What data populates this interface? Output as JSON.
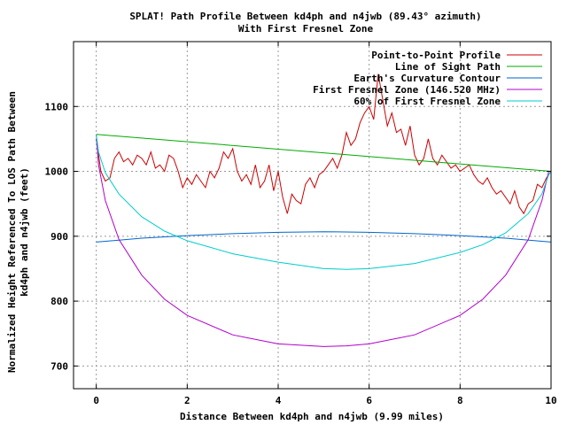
{
  "chart_data": {
    "type": "line",
    "title": "SPLAT! Path Profile Between kd4ph and n4jwb (89.43° azimuth)",
    "subtitle": "With First Fresnel Zone",
    "xlabel": "Distance Between kd4ph and n4jwb (9.99 miles)",
    "ylabel_line1": "Normalized Height Referenced To LOS Path Between",
    "ylabel_line2": "kd4ph and n4jwb (feet)",
    "xlim": [
      -0.5,
      10
    ],
    "ylim": [
      665,
      1200
    ],
    "x_ticks": [
      0,
      2,
      4,
      6,
      8,
      10
    ],
    "y_ticks": [
      700,
      800,
      900,
      1000,
      1100
    ],
    "grid": true,
    "legend_position": "top-right",
    "series": [
      {
        "name": "Point-to-Point Profile",
        "color": "#cc0000",
        "x": [
          0,
          0.1,
          0.2,
          0.3,
          0.4,
          0.5,
          0.6,
          0.7,
          0.8,
          0.9,
          1.0,
          1.1,
          1.2,
          1.3,
          1.4,
          1.5,
          1.6,
          1.7,
          1.8,
          1.9,
          2.0,
          2.1,
          2.2,
          2.3,
          2.4,
          2.5,
          2.6,
          2.7,
          2.8,
          2.9,
          3.0,
          3.1,
          3.2,
          3.3,
          3.4,
          3.5,
          3.6,
          3.7,
          3.8,
          3.9,
          4.0,
          4.1,
          4.2,
          4.3,
          4.4,
          4.5,
          4.6,
          4.7,
          4.8,
          4.9,
          5.0,
          5.1,
          5.2,
          5.3,
          5.4,
          5.5,
          5.6,
          5.7,
          5.8,
          5.9,
          6.0,
          6.1,
          6.2,
          6.3,
          6.4,
          6.5,
          6.6,
          6.7,
          6.8,
          6.9,
          7.0,
          7.1,
          7.2,
          7.3,
          7.4,
          7.5,
          7.6,
          7.7,
          7.8,
          7.9,
          8.0,
          8.1,
          8.2,
          8.3,
          8.4,
          8.5,
          8.6,
          8.7,
          8.8,
          8.9,
          9.0,
          9.1,
          9.2,
          9.3,
          9.4,
          9.5,
          9.6,
          9.7,
          9.8,
          9.9,
          10.0
        ],
        "values": [
          1050,
          1000,
          985,
          990,
          1020,
          1030,
          1015,
          1020,
          1010,
          1025,
          1020,
          1010,
          1030,
          1005,
          1010,
          1000,
          1025,
          1020,
          1000,
          975,
          990,
          980,
          995,
          985,
          975,
          1000,
          990,
          1005,
          1030,
          1020,
          1035,
          1000,
          985,
          995,
          980,
          1010,
          975,
          985,
          1010,
          970,
          1000,
          960,
          935,
          965,
          955,
          950,
          980,
          990,
          975,
          995,
          1000,
          1010,
          1020,
          1005,
          1025,
          1060,
          1040,
          1050,
          1075,
          1090,
          1100,
          1080,
          1150,
          1110,
          1070,
          1090,
          1060,
          1065,
          1040,
          1070,
          1025,
          1010,
          1020,
          1050,
          1020,
          1010,
          1025,
          1015,
          1005,
          1010,
          1000,
          1005,
          1010,
          995,
          985,
          980,
          990,
          975,
          965,
          970,
          960,
          950,
          970,
          945,
          935,
          950,
          955,
          980,
          975,
          990,
          1000
        ]
      },
      {
        "name": "Line of Sight Path",
        "color": "#00aa00",
        "x": [
          0,
          10
        ],
        "values": [
          1057,
          1000
        ]
      },
      {
        "name": "Earth's Curvature Contour",
        "color": "#0066cc",
        "x": [
          0,
          1,
          2,
          3,
          4,
          5,
          6,
          7,
          8,
          9,
          10
        ],
        "values": [
          891,
          897,
          901,
          904,
          906,
          907,
          906,
          904,
          901,
          897,
          891
        ]
      },
      {
        "name": "First Fresnel Zone (146.520 MHz)",
        "color": "#b000cc",
        "x": [
          0,
          0.05,
          0.2,
          0.5,
          1,
          1.5,
          2,
          3,
          4,
          5,
          5.5,
          6,
          7,
          8,
          8.5,
          9,
          9.5,
          9.8,
          9.95,
          10
        ],
        "values": [
          1057,
          1010,
          955,
          895,
          840,
          803,
          778,
          748,
          734,
          730,
          731,
          734,
          748,
          778,
          803,
          840,
          895,
          955,
          1000,
          1000
        ]
      },
      {
        "name": "60% of First Fresnel Zone",
        "color": "#00cccc",
        "x": [
          0,
          0.05,
          0.2,
          0.5,
          1,
          1.5,
          2,
          3,
          4,
          5,
          5.5,
          6,
          7,
          8,
          8.5,
          9,
          9.5,
          9.8,
          9.95,
          10
        ],
        "values": [
          1057,
          1030,
          998,
          965,
          930,
          908,
          893,
          873,
          860,
          850,
          849,
          850,
          858,
          875,
          887,
          905,
          935,
          965,
          995,
          1000
        ]
      }
    ]
  }
}
